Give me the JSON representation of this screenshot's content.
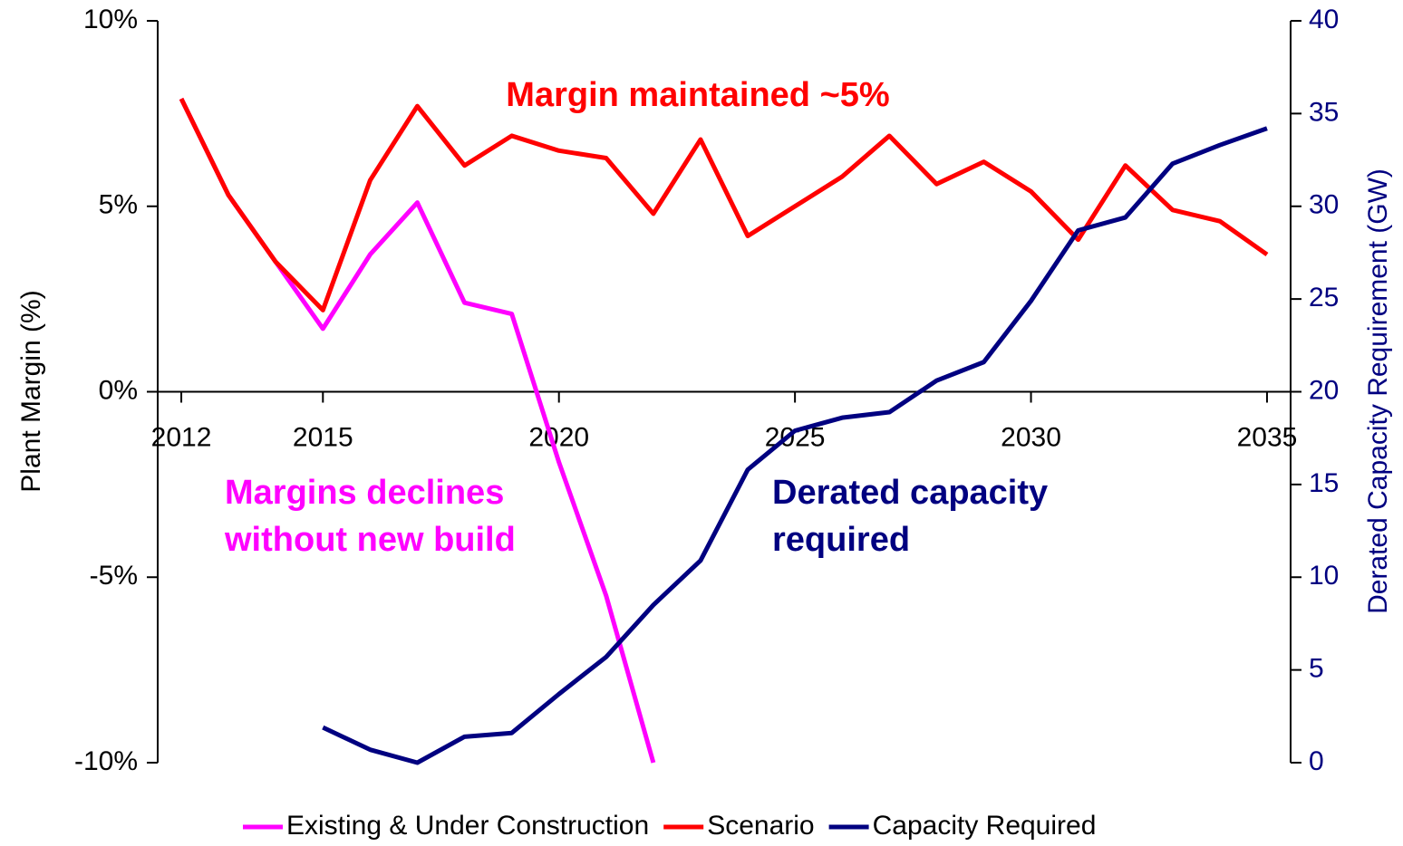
{
  "chart_data": {
    "type": "line",
    "xlim": [
      2011.5,
      2035.5
    ],
    "xticks": [
      2012,
      2015,
      2020,
      2025,
      2030,
      2035
    ],
    "x": [
      2012,
      2013,
      2014,
      2015,
      2016,
      2017,
      2018,
      2019,
      2020,
      2021,
      2022,
      2023,
      2024,
      2025,
      2026,
      2027,
      2028,
      2029,
      2030,
      2031,
      2032,
      2033,
      2034,
      2035
    ],
    "ylim": [
      -10,
      10
    ],
    "yticks": [
      {
        "value": -10,
        "label": "-10%"
      },
      {
        "value": -5,
        "label": "-5%"
      },
      {
        "value": 0,
        "label": "0%"
      },
      {
        "value": 5,
        "label": "5%"
      },
      {
        "value": 10,
        "label": "10%"
      }
    ],
    "y2lim": [
      0,
      40
    ],
    "y2ticks": [
      0,
      5,
      10,
      15,
      20,
      25,
      30,
      35,
      40
    ],
    "y_label": "Plant Margin (%)",
    "y2_label": "Derated Capacity Requirement (GW)",
    "y2_color": "#000080",
    "series": [
      {
        "name": "Existing & Under Construction",
        "color": "#ff00ff",
        "values": [
          7.9,
          5.3,
          3.5,
          1.7,
          3.7,
          5.1,
          2.4,
          2.1,
          -1.9,
          -5.5,
          -10,
          null,
          null,
          null,
          null,
          null,
          null,
          null,
          null,
          null,
          null,
          null,
          null,
          null
        ]
      },
      {
        "name": "Scenario",
        "color": "#ff0000",
        "values": [
          7.9,
          5.3,
          3.5,
          2.2,
          5.7,
          7.7,
          6.1,
          6.9,
          6.5,
          6.3,
          4.8,
          6.8,
          4.2,
          5.0,
          5.8,
          6.9,
          5.6,
          6.2,
          5.4,
          4.1,
          6.1,
          4.9,
          4.6,
          3.7
        ]
      },
      {
        "name": "Capacity Required",
        "color": "#000080",
        "axis": "y2",
        "values": [
          null,
          null,
          null,
          1.9,
          0.7,
          0,
          1.4,
          1.6,
          3.7,
          5.7,
          8.5,
          10.9,
          15.8,
          17.9,
          18.6,
          18.9,
          20.6,
          21.6,
          24.9,
          28.7,
          29.4,
          32.3,
          33.3,
          34.2
        ]
      }
    ],
    "annotations": [
      {
        "lines": [
          "Margin maintained ~5%"
        ],
        "color": "#ff0000"
      },
      {
        "lines": [
          "Margins declines",
          "without new build"
        ],
        "color": "#ff00ff"
      },
      {
        "lines": [
          "Derated capacity",
          "required"
        ],
        "color": "#000080"
      }
    ]
  }
}
